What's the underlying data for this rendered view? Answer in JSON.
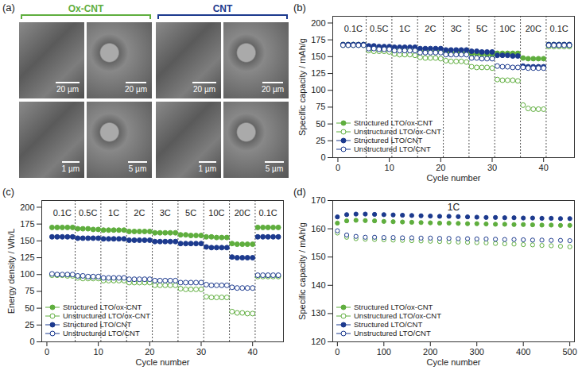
{
  "figure_a": {
    "panel": "(a)",
    "groups": [
      {
        "name": "Ox-CNT",
        "color": "#5fae3e",
        "scale_bars": [
          "20 µm",
          "20 µm",
          "1 µm",
          "5 µm"
        ]
      },
      {
        "name": "CNT",
        "color": "#1c3a8e",
        "scale_bars": [
          "20 µm",
          "20 µm",
          "1 µm",
          "5 µm"
        ]
      }
    ]
  },
  "chart_data": [
    {
      "type": "scatter",
      "panel": "(b)",
      "x_label": "Cycle number",
      "y_label": "Specific capacity / mAh/g",
      "xlim": [
        -1,
        46
      ],
      "xticks": [
        0,
        10,
        20,
        30,
        40
      ],
      "ylim": [
        0,
        210
      ],
      "yticks": [
        0,
        25,
        50,
        75,
        100,
        125,
        150,
        175,
        200
      ],
      "grid": false,
      "legend": "lower left",
      "rates": [
        {
          "label": "0.1C",
          "start": 0.5,
          "end": 5.5
        },
        {
          "label": "0.5C",
          "start": 5.5,
          "end": 10.5
        },
        {
          "label": "1C",
          "start": 10.5,
          "end": 15.5
        },
        {
          "label": "2C",
          "start": 15.5,
          "end": 20.5
        },
        {
          "label": "3C",
          "start": 20.5,
          "end": 25.5
        },
        {
          "label": "5C",
          "start": 25.5,
          "end": 30.5
        },
        {
          "label": "10C",
          "start": 30.5,
          "end": 35.5
        },
        {
          "label": "20C",
          "start": 35.5,
          "end": 40.5
        },
        {
          "label": "0.1C",
          "start": 40.5,
          "end": 45.5
        }
      ],
      "x": [
        1,
        2,
        3,
        4,
        5,
        6,
        7,
        8,
        9,
        10,
        11,
        12,
        13,
        14,
        15,
        16,
        17,
        18,
        19,
        20,
        21,
        22,
        23,
        24,
        25,
        26,
        27,
        28,
        29,
        30,
        31,
        32,
        33,
        34,
        35,
        36,
        37,
        38,
        39,
        40,
        41,
        42,
        43,
        44,
        45
      ],
      "series": [
        {
          "name": "Structured LTO/ox-CNT",
          "color": "#5fae3e",
          "marker": "circle",
          "values": [
            168,
            168,
            168,
            168,
            168,
            163,
            163,
            163,
            163,
            163,
            161,
            161,
            161,
            160,
            160,
            158,
            158,
            158,
            158,
            158,
            156,
            156,
            156,
            156,
            156,
            154,
            154,
            154,
            153,
            153,
            155,
            155,
            155,
            155,
            155,
            148,
            147,
            147,
            147,
            147,
            168,
            168,
            168,
            168,
            168
          ]
        },
        {
          "name": "Unstructured LTO/ox-CNT",
          "color": "#5fae3e",
          "marker": "circle-open",
          "values": [
            167,
            167,
            167,
            167,
            167,
            159,
            158,
            158,
            158,
            157,
            154,
            153,
            153,
            153,
            152,
            149,
            148,
            148,
            148,
            147,
            144,
            143,
            143,
            143,
            142,
            135,
            134,
            134,
            134,
            133,
            116,
            115,
            115,
            115,
            114,
            78,
            73,
            72,
            72,
            72,
            165,
            165,
            165,
            165,
            165
          ]
        },
        {
          "name": "Structured LTO/CNT",
          "color": "#1c3a8e",
          "marker": "circle",
          "values": [
            168,
            168,
            168,
            168,
            168,
            166,
            166,
            165,
            165,
            165,
            164,
            164,
            164,
            164,
            164,
            162,
            162,
            162,
            162,
            162,
            160,
            160,
            160,
            160,
            160,
            158,
            158,
            157,
            157,
            157,
            152,
            152,
            152,
            151,
            151,
            136,
            135,
            135,
            135,
            135,
            168,
            168,
            168,
            168,
            168
          ]
        },
        {
          "name": "Unstructured LTO/CNT",
          "color": "#1c3a8e",
          "marker": "circle-open",
          "values": [
            167,
            167,
            167,
            167,
            167,
            162,
            162,
            161,
            161,
            161,
            159,
            159,
            159,
            159,
            159,
            156,
            156,
            156,
            156,
            156,
            153,
            153,
            153,
            153,
            153,
            148,
            148,
            147,
            147,
            147,
            136,
            135,
            135,
            134,
            134,
            134,
            133,
            133,
            133,
            133,
            167,
            167,
            167,
            167,
            167
          ]
        }
      ]
    },
    {
      "type": "scatter",
      "panel": "(c)",
      "x_label": "Cycle number",
      "y_label": "Energy density / Wh/L",
      "xlim": [
        -1,
        46
      ],
      "xticks": [
        0,
        10,
        20,
        30,
        40
      ],
      "ylim": [
        0,
        210
      ],
      "yticks": [
        0,
        25,
        50,
        75,
        100,
        125,
        150,
        175,
        200
      ],
      "grid": false,
      "legend": "lower left",
      "rates": [
        {
          "label": "0.1C",
          "start": 0.5,
          "end": 5.5
        },
        {
          "label": "0.5C",
          "start": 5.5,
          "end": 10.5
        },
        {
          "label": "1C",
          "start": 10.5,
          "end": 15.5
        },
        {
          "label": "2C",
          "start": 15.5,
          "end": 20.5
        },
        {
          "label": "3C",
          "start": 20.5,
          "end": 25.5
        },
        {
          "label": "5C",
          "start": 25.5,
          "end": 30.5
        },
        {
          "label": "10C",
          "start": 30.5,
          "end": 35.5
        },
        {
          "label": "20C",
          "start": 35.5,
          "end": 40.5
        },
        {
          "label": "0.1C",
          "start": 40.5,
          "end": 45.5
        }
      ],
      "x": [
        1,
        2,
        3,
        4,
        5,
        6,
        7,
        8,
        9,
        10,
        11,
        12,
        13,
        14,
        15,
        16,
        17,
        18,
        19,
        20,
        21,
        22,
        23,
        24,
        25,
        26,
        27,
        28,
        29,
        30,
        31,
        32,
        33,
        34,
        35,
        36,
        37,
        38,
        39,
        40,
        41,
        42,
        43,
        44,
        45
      ],
      "series": [
        {
          "name": "Structured LTO/ox-CNT",
          "color": "#5fae3e",
          "marker": "circle",
          "values": [
            170,
            170,
            170,
            170,
            170,
            168,
            168,
            168,
            167,
            167,
            166,
            166,
            166,
            166,
            166,
            164,
            164,
            164,
            164,
            164,
            162,
            162,
            162,
            162,
            162,
            159,
            159,
            158,
            158,
            158,
            156,
            156,
            155,
            155,
            155,
            146,
            145,
            145,
            145,
            145,
            170,
            170,
            170,
            170,
            170
          ]
        },
        {
          "name": "Unstructured LTO/ox-CNT",
          "color": "#5fae3e",
          "marker": "circle-open",
          "values": [
            99,
            99,
            99,
            98,
            98,
            95,
            94,
            94,
            94,
            94,
            91,
            91,
            91,
            91,
            91,
            88,
            88,
            88,
            88,
            88,
            84,
            84,
            84,
            84,
            84,
            79,
            78,
            78,
            78,
            78,
            67,
            66,
            66,
            66,
            66,
            45,
            43,
            43,
            42,
            42,
            97,
            97,
            97,
            97,
            97
          ]
        },
        {
          "name": "Structured LTO/CNT",
          "color": "#1c3a8e",
          "marker": "circle",
          "values": [
            156,
            156,
            156,
            156,
            156,
            154,
            154,
            154,
            154,
            154,
            153,
            153,
            153,
            153,
            153,
            151,
            151,
            151,
            151,
            151,
            149,
            149,
            149,
            149,
            149,
            146,
            146,
            146,
            146,
            146,
            141,
            140,
            140,
            140,
            140,
            126,
            125,
            125,
            125,
            125,
            156,
            156,
            156,
            156,
            156
          ]
        },
        {
          "name": "Unstructured LTO/CNT",
          "color": "#1c3a8e",
          "marker": "circle-open",
          "values": [
            101,
            100,
            100,
            100,
            100,
            98,
            98,
            97,
            97,
            97,
            95,
            95,
            95,
            95,
            95,
            93,
            93,
            93,
            93,
            93,
            91,
            91,
            91,
            91,
            91,
            88,
            88,
            88,
            88,
            88,
            85,
            84,
            84,
            84,
            84,
            81,
            80,
            80,
            80,
            80,
            99,
            99,
            99,
            99,
            99
          ]
        }
      ]
    },
    {
      "type": "scatter",
      "panel": "(d)",
      "x_label": "Cycle number",
      "y_label": "Specific capacity / mAh/g",
      "xlim": [
        -10,
        510
      ],
      "xticks": [
        0,
        100,
        200,
        300,
        400,
        500
      ],
      "ylim": [
        120,
        170
      ],
      "yticks": [
        120,
        130,
        140,
        150,
        160,
        170
      ],
      "grid": false,
      "legend": "lower left",
      "annotations": [
        {
          "text": "1C",
          "x": 250,
          "y": 167.5
        }
      ],
      "x": [
        0,
        20,
        40,
        60,
        80,
        100,
        120,
        140,
        160,
        180,
        200,
        220,
        240,
        260,
        280,
        300,
        320,
        340,
        360,
        380,
        400,
        420,
        440,
        460,
        480,
        500
      ],
      "series": [
        {
          "name": "Structured LTO/ox-CNT",
          "color": "#5fae3e",
          "marker": "circle",
          "values": [
            162.0,
            162.8,
            163.0,
            162.9,
            162.8,
            162.6,
            162.5,
            162.4,
            162.3,
            162.2,
            162.1,
            162.0,
            162.0,
            161.9,
            161.8,
            161.8,
            161.7,
            161.6,
            161.6,
            161.5,
            161.5,
            161.4,
            161.3,
            161.3,
            161.2,
            161.2
          ]
        },
        {
          "name": "Unstructured LTO/ox-CNT",
          "color": "#5fae3e",
          "marker": "circle-open",
          "values": [
            158.5,
            157.0,
            156.5,
            156.3,
            156.2,
            156.1,
            156.0,
            155.9,
            155.8,
            155.7,
            155.6,
            155.5,
            155.4,
            155.3,
            155.2,
            155.1,
            155.0,
            154.8,
            154.7,
            154.6,
            154.4,
            154.3,
            154.1,
            154.0,
            153.8,
            153.6
          ]
        },
        {
          "name": "Structured LTO/CNT",
          "color": "#1c3a8e",
          "marker": "circle",
          "values": [
            164.2,
            165.0,
            165.2,
            165.2,
            165.1,
            165.0,
            164.9,
            164.8,
            164.7,
            164.6,
            164.5,
            164.4,
            164.4,
            164.3,
            164.2,
            164.1,
            164.0,
            164.0,
            163.9,
            163.9,
            163.8,
            163.8,
            163.7,
            163.7,
            163.6,
            163.6
          ]
        },
        {
          "name": "Unstructured LTO/CNT",
          "color": "#1c3a8e",
          "marker": "circle-open",
          "values": [
            159.3,
            157.8,
            157.3,
            157.0,
            157.0,
            156.9,
            156.9,
            156.8,
            156.8,
            156.7,
            156.7,
            156.6,
            156.6,
            156.5,
            156.5,
            156.4,
            156.4,
            156.3,
            156.2,
            156.2,
            156.1,
            156.0,
            156.0,
            155.9,
            155.9,
            155.8
          ]
        }
      ]
    }
  ]
}
